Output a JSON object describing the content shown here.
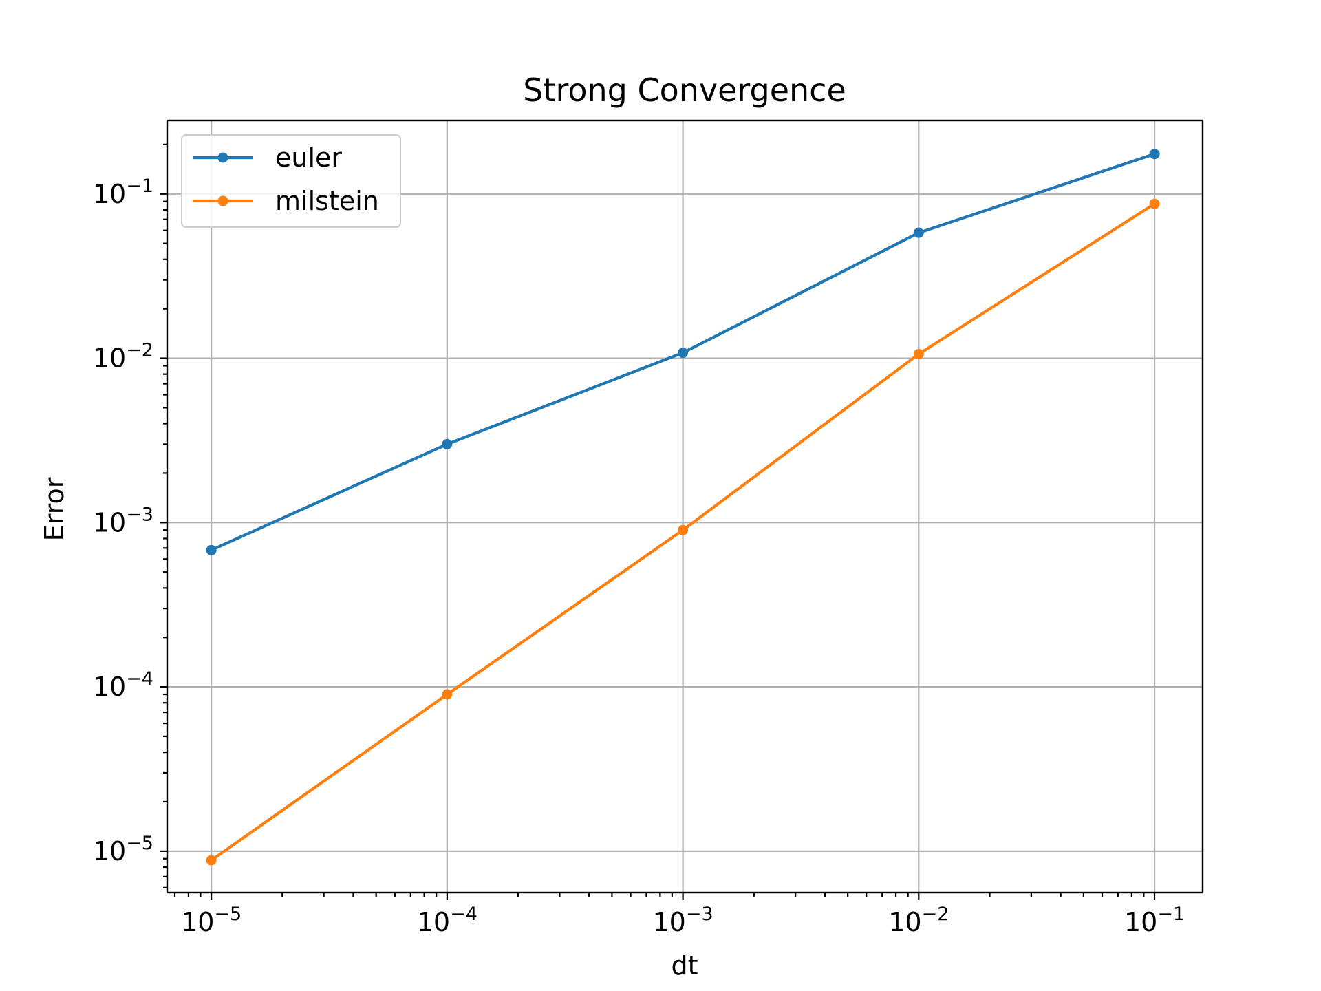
{
  "chart_data": {
    "type": "line",
    "title": "Strong Convergence",
    "xlabel": "dt",
    "ylabel": "Error",
    "xscale": "log",
    "yscale": "log",
    "grid": true,
    "legend_position": "top-left",
    "xlim": [
      6.5e-06,
      0.16
    ],
    "ylim": [
      5.6e-06,
      0.28
    ],
    "x": [
      1e-05,
      0.0001,
      0.001,
      0.01,
      0.1
    ],
    "x_ticks": [
      {
        "value": 1e-05,
        "base": "10",
        "exp": "−5"
      },
      {
        "value": 0.0001,
        "base": "10",
        "exp": "−4"
      },
      {
        "value": 0.001,
        "base": "10",
        "exp": "−3"
      },
      {
        "value": 0.01,
        "base": "10",
        "exp": "−2"
      },
      {
        "value": 0.1,
        "base": "10",
        "exp": "−1"
      }
    ],
    "y_ticks": [
      {
        "value": 1e-05,
        "base": "10",
        "exp": "−5"
      },
      {
        "value": 0.0001,
        "base": "10",
        "exp": "−4"
      },
      {
        "value": 0.001,
        "base": "10",
        "exp": "−3"
      },
      {
        "value": 0.01,
        "base": "10",
        "exp": "−2"
      },
      {
        "value": 0.1,
        "base": "10",
        "exp": "−1"
      }
    ],
    "series": [
      {
        "name": "euler",
        "color": "#1f77b4",
        "values": [
          0.00068,
          0.003,
          0.0108,
          0.058,
          0.175
        ]
      },
      {
        "name": "milstein",
        "color": "#ff7f0e",
        "values": [
          8.8e-06,
          9e-05,
          0.0009,
          0.0106,
          0.087
        ]
      }
    ]
  }
}
